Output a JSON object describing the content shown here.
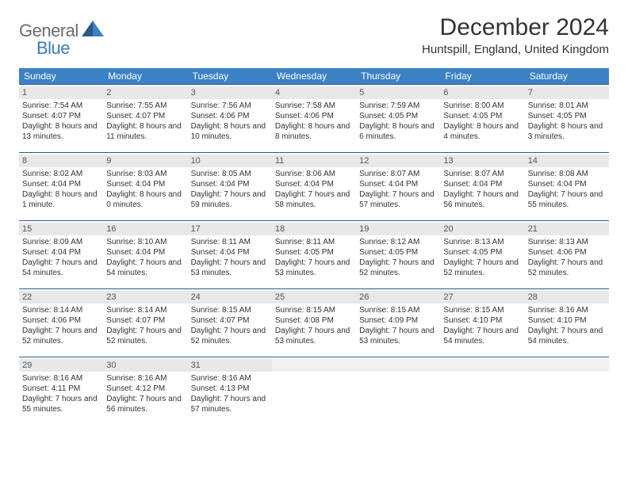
{
  "brand": {
    "general": "General",
    "blue": "Blue"
  },
  "title": "December 2024",
  "location": "Huntspill, England, United Kingdom",
  "colors": {
    "header_bg": "#3b82c4",
    "header_text": "#ffffff",
    "daynum_bg": "#e8e8e8",
    "row_border": "#2a5a8a",
    "logo_gray": "#6b6b6b",
    "logo_blue": "#3b7bbf"
  },
  "weekdays": [
    "Sunday",
    "Monday",
    "Tuesday",
    "Wednesday",
    "Thursday",
    "Friday",
    "Saturday"
  ],
  "weeks": [
    [
      {
        "n": "1",
        "sr": "Sunrise: 7:54 AM",
        "ss": "Sunset: 4:07 PM",
        "dl": "Daylight: 8 hours and 13 minutes."
      },
      {
        "n": "2",
        "sr": "Sunrise: 7:55 AM",
        "ss": "Sunset: 4:07 PM",
        "dl": "Daylight: 8 hours and 11 minutes."
      },
      {
        "n": "3",
        "sr": "Sunrise: 7:56 AM",
        "ss": "Sunset: 4:06 PM",
        "dl": "Daylight: 8 hours and 10 minutes."
      },
      {
        "n": "4",
        "sr": "Sunrise: 7:58 AM",
        "ss": "Sunset: 4:06 PM",
        "dl": "Daylight: 8 hours and 8 minutes."
      },
      {
        "n": "5",
        "sr": "Sunrise: 7:59 AM",
        "ss": "Sunset: 4:05 PM",
        "dl": "Daylight: 8 hours and 6 minutes."
      },
      {
        "n": "6",
        "sr": "Sunrise: 8:00 AM",
        "ss": "Sunset: 4:05 PM",
        "dl": "Daylight: 8 hours and 4 minutes."
      },
      {
        "n": "7",
        "sr": "Sunrise: 8:01 AM",
        "ss": "Sunset: 4:05 PM",
        "dl": "Daylight: 8 hours and 3 minutes."
      }
    ],
    [
      {
        "n": "8",
        "sr": "Sunrise: 8:02 AM",
        "ss": "Sunset: 4:04 PM",
        "dl": "Daylight: 8 hours and 1 minute."
      },
      {
        "n": "9",
        "sr": "Sunrise: 8:03 AM",
        "ss": "Sunset: 4:04 PM",
        "dl": "Daylight: 8 hours and 0 minutes."
      },
      {
        "n": "10",
        "sr": "Sunrise: 8:05 AM",
        "ss": "Sunset: 4:04 PM",
        "dl": "Daylight: 7 hours and 59 minutes."
      },
      {
        "n": "11",
        "sr": "Sunrise: 8:06 AM",
        "ss": "Sunset: 4:04 PM",
        "dl": "Daylight: 7 hours and 58 minutes."
      },
      {
        "n": "12",
        "sr": "Sunrise: 8:07 AM",
        "ss": "Sunset: 4:04 PM",
        "dl": "Daylight: 7 hours and 57 minutes."
      },
      {
        "n": "13",
        "sr": "Sunrise: 8:07 AM",
        "ss": "Sunset: 4:04 PM",
        "dl": "Daylight: 7 hours and 56 minutes."
      },
      {
        "n": "14",
        "sr": "Sunrise: 8:08 AM",
        "ss": "Sunset: 4:04 PM",
        "dl": "Daylight: 7 hours and 55 minutes."
      }
    ],
    [
      {
        "n": "15",
        "sr": "Sunrise: 8:09 AM",
        "ss": "Sunset: 4:04 PM",
        "dl": "Daylight: 7 hours and 54 minutes."
      },
      {
        "n": "16",
        "sr": "Sunrise: 8:10 AM",
        "ss": "Sunset: 4:04 PM",
        "dl": "Daylight: 7 hours and 54 minutes."
      },
      {
        "n": "17",
        "sr": "Sunrise: 8:11 AM",
        "ss": "Sunset: 4:04 PM",
        "dl": "Daylight: 7 hours and 53 minutes."
      },
      {
        "n": "18",
        "sr": "Sunrise: 8:11 AM",
        "ss": "Sunset: 4:05 PM",
        "dl": "Daylight: 7 hours and 53 minutes."
      },
      {
        "n": "19",
        "sr": "Sunrise: 8:12 AM",
        "ss": "Sunset: 4:05 PM",
        "dl": "Daylight: 7 hours and 52 minutes."
      },
      {
        "n": "20",
        "sr": "Sunrise: 8:13 AM",
        "ss": "Sunset: 4:05 PM",
        "dl": "Daylight: 7 hours and 52 minutes."
      },
      {
        "n": "21",
        "sr": "Sunrise: 8:13 AM",
        "ss": "Sunset: 4:06 PM",
        "dl": "Daylight: 7 hours and 52 minutes."
      }
    ],
    [
      {
        "n": "22",
        "sr": "Sunrise: 8:14 AM",
        "ss": "Sunset: 4:06 PM",
        "dl": "Daylight: 7 hours and 52 minutes."
      },
      {
        "n": "23",
        "sr": "Sunrise: 8:14 AM",
        "ss": "Sunset: 4:07 PM",
        "dl": "Daylight: 7 hours and 52 minutes."
      },
      {
        "n": "24",
        "sr": "Sunrise: 8:15 AM",
        "ss": "Sunset: 4:07 PM",
        "dl": "Daylight: 7 hours and 52 minutes."
      },
      {
        "n": "25",
        "sr": "Sunrise: 8:15 AM",
        "ss": "Sunset: 4:08 PM",
        "dl": "Daylight: 7 hours and 53 minutes."
      },
      {
        "n": "26",
        "sr": "Sunrise: 8:15 AM",
        "ss": "Sunset: 4:09 PM",
        "dl": "Daylight: 7 hours and 53 minutes."
      },
      {
        "n": "27",
        "sr": "Sunrise: 8:15 AM",
        "ss": "Sunset: 4:10 PM",
        "dl": "Daylight: 7 hours and 54 minutes."
      },
      {
        "n": "28",
        "sr": "Sunrise: 8:16 AM",
        "ss": "Sunset: 4:10 PM",
        "dl": "Daylight: 7 hours and 54 minutes."
      }
    ],
    [
      {
        "n": "29",
        "sr": "Sunrise: 8:16 AM",
        "ss": "Sunset: 4:11 PM",
        "dl": "Daylight: 7 hours and 55 minutes."
      },
      {
        "n": "30",
        "sr": "Sunrise: 8:16 AM",
        "ss": "Sunset: 4:12 PM",
        "dl": "Daylight: 7 hours and 56 minutes."
      },
      {
        "n": "31",
        "sr": "Sunrise: 8:16 AM",
        "ss": "Sunset: 4:13 PM",
        "dl": "Daylight: 7 hours and 57 minutes."
      },
      {
        "n": "",
        "sr": "",
        "ss": "",
        "dl": ""
      },
      {
        "n": "",
        "sr": "",
        "ss": "",
        "dl": ""
      },
      {
        "n": "",
        "sr": "",
        "ss": "",
        "dl": ""
      },
      {
        "n": "",
        "sr": "",
        "ss": "",
        "dl": ""
      }
    ]
  ]
}
